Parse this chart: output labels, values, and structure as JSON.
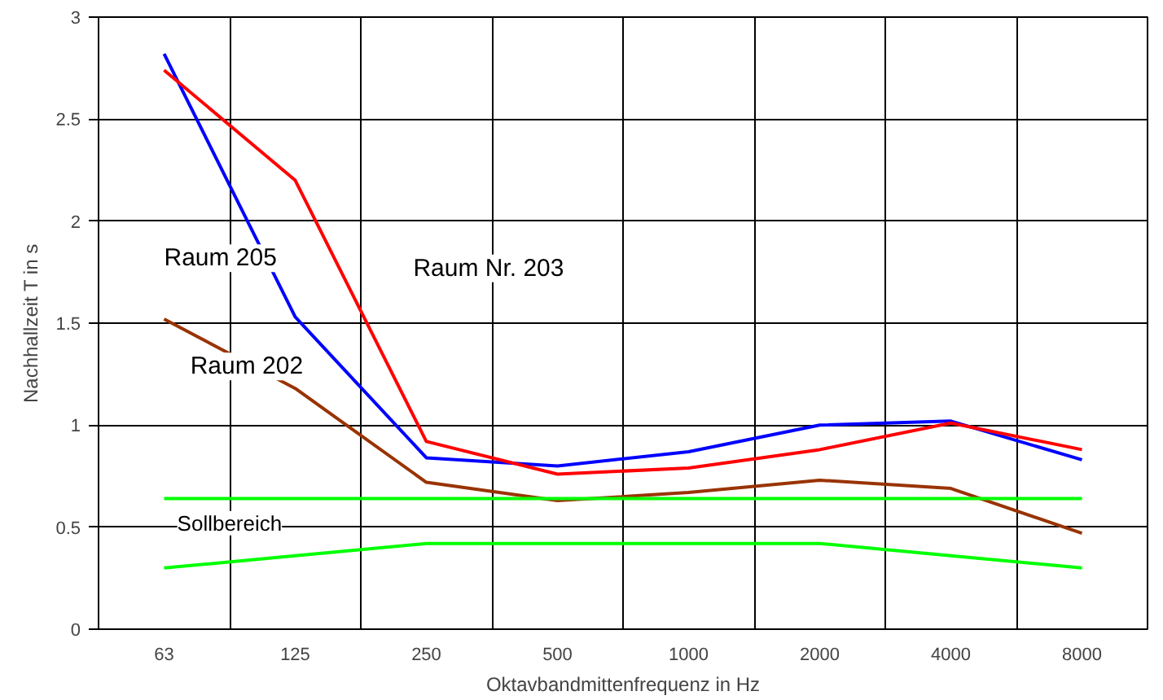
{
  "chart_data": {
    "type": "line",
    "xlabel": "Oktavbandmittenfrequenz in Hz",
    "ylabel": "Nachhallzeit T in s",
    "categories": [
      "63",
      "125",
      "250",
      "500",
      "1000",
      "2000",
      "4000",
      "8000"
    ],
    "series": [
      {
        "name": "Raum 205",
        "color": "#0000ff",
        "values": [
          2.82,
          1.53,
          0.84,
          0.8,
          0.87,
          1.0,
          1.02,
          0.83
        ]
      },
      {
        "name": "Raum Nr. 203",
        "color": "#ff0000",
        "values": [
          2.74,
          2.2,
          0.92,
          0.76,
          0.79,
          0.88,
          1.01,
          0.88
        ]
      },
      {
        "name": "Raum 202",
        "color": "#993300",
        "values": [
          1.52,
          1.18,
          0.72,
          0.63,
          0.67,
          0.73,
          0.69,
          0.47
        ]
      },
      {
        "name": "Sollbereich",
        "color": "#00ff00",
        "values": [
          0.64,
          0.64,
          0.64,
          0.64,
          0.64,
          0.64,
          0.64,
          0.64
        ]
      },
      {
        "color": "#00ff00",
        "values": [
          0.3,
          0.36,
          0.42,
          0.42,
          0.42,
          0.42,
          0.36,
          0.3
        ]
      }
    ],
    "ylim": [
      0,
      3
    ],
    "yticks": [
      0,
      0.5,
      1,
      1.5,
      2,
      2.5,
      3
    ],
    "grid": true,
    "marker": "none",
    "line_style": "solid"
  }
}
